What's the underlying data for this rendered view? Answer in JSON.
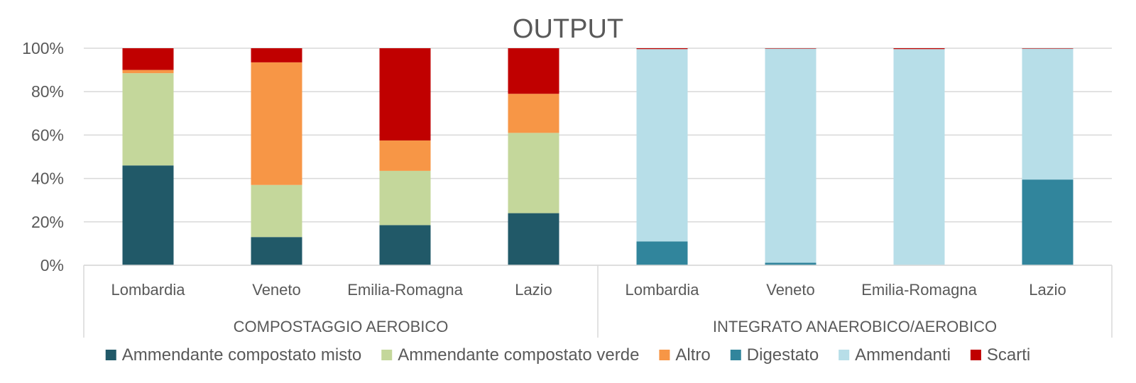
{
  "chart_data": {
    "type": "bar",
    "stacked": true,
    "normalized": true,
    "title": "OUTPUT",
    "xlabel": "",
    "ylabel": "",
    "ylim": [
      0,
      100
    ],
    "yticks": [
      "0%",
      "20%",
      "40%",
      "60%",
      "80%",
      "100%"
    ],
    "grid": true,
    "legend_position": "bottom",
    "groups": [
      {
        "label": "COMPOSTAGGIO AEROBICO",
        "categories": [
          "Lombardia",
          "Veneto",
          "Emilia-Romagna",
          "Lazio"
        ]
      },
      {
        "label": "INTEGRATO ANAEROBICO/AEROBICO",
        "categories": [
          "Lombardia",
          "Veneto",
          "Emilia-Romagna",
          "Lazio"
        ]
      }
    ],
    "series": [
      {
        "name": "Ammendante compostato misto",
        "color": "#215968",
        "values": [
          46,
          13,
          18.5,
          24,
          0,
          0,
          0,
          0
        ]
      },
      {
        "name": "Ammendante compostato verde",
        "color": "#C4D79B",
        "values": [
          42.5,
          24,
          25,
          37,
          0,
          0,
          0,
          0
        ]
      },
      {
        "name": "Altro",
        "color": "#F79646",
        "values": [
          1.5,
          56.5,
          14,
          18,
          0,
          0,
          0,
          0
        ]
      },
      {
        "name": "Digestato",
        "color": "#31859C",
        "values": [
          0,
          0,
          0,
          0,
          11,
          1.2,
          0,
          39.5
        ]
      },
      {
        "name": "Ammendanti",
        "color": "#B7DEE8",
        "values": [
          0,
          0,
          0,
          0,
          88.6,
          98.6,
          99.6,
          60.3
        ]
      },
      {
        "name": "Scarti",
        "color": "#C00000",
        "values": [
          10,
          6.5,
          42.5,
          21,
          0.4,
          0.2,
          0.4,
          0.2
        ]
      }
    ]
  }
}
